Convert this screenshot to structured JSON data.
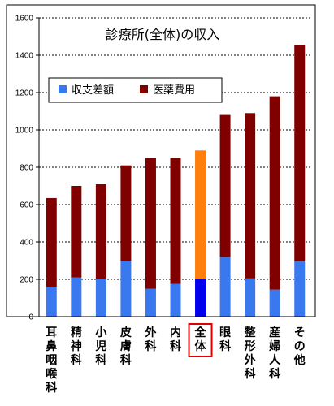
{
  "colors": {
    "income": "#3A78F0",
    "expense": "#800000",
    "highlight_income": "#0000EE",
    "highlight_expense": "#FF7F0E",
    "highlight_frame": "#E00000",
    "gridline": "#000000",
    "frame_fill": "#FFFFFF"
  },
  "chart_data": {
    "type": "bar",
    "stacked": true,
    "title": "診療所(全体)の収入",
    "ylim": [
      0,
      1600
    ],
    "yticks": [
      0,
      200,
      400,
      600,
      800,
      1000,
      1200,
      1400,
      1600
    ],
    "grid": "horizontal dashed",
    "legend_position": "top-left",
    "highlight_category": "全体",
    "categories": [
      "耳鼻咽喉科",
      "精神科",
      "小児科",
      "皮膚科",
      "外科",
      "内科",
      "全体",
      "眼科",
      "整形外科",
      "産婦人科",
      "その他"
    ],
    "series": [
      {
        "name": "収支差額",
        "values": [
          160,
          210,
          200,
          300,
          150,
          175,
          200,
          320,
          205,
          145,
          295
        ]
      },
      {
        "name": "医薬費用",
        "values": [
          475,
          490,
          510,
          510,
          700,
          675,
          690,
          760,
          885,
          1035,
          1160
        ]
      }
    ]
  }
}
